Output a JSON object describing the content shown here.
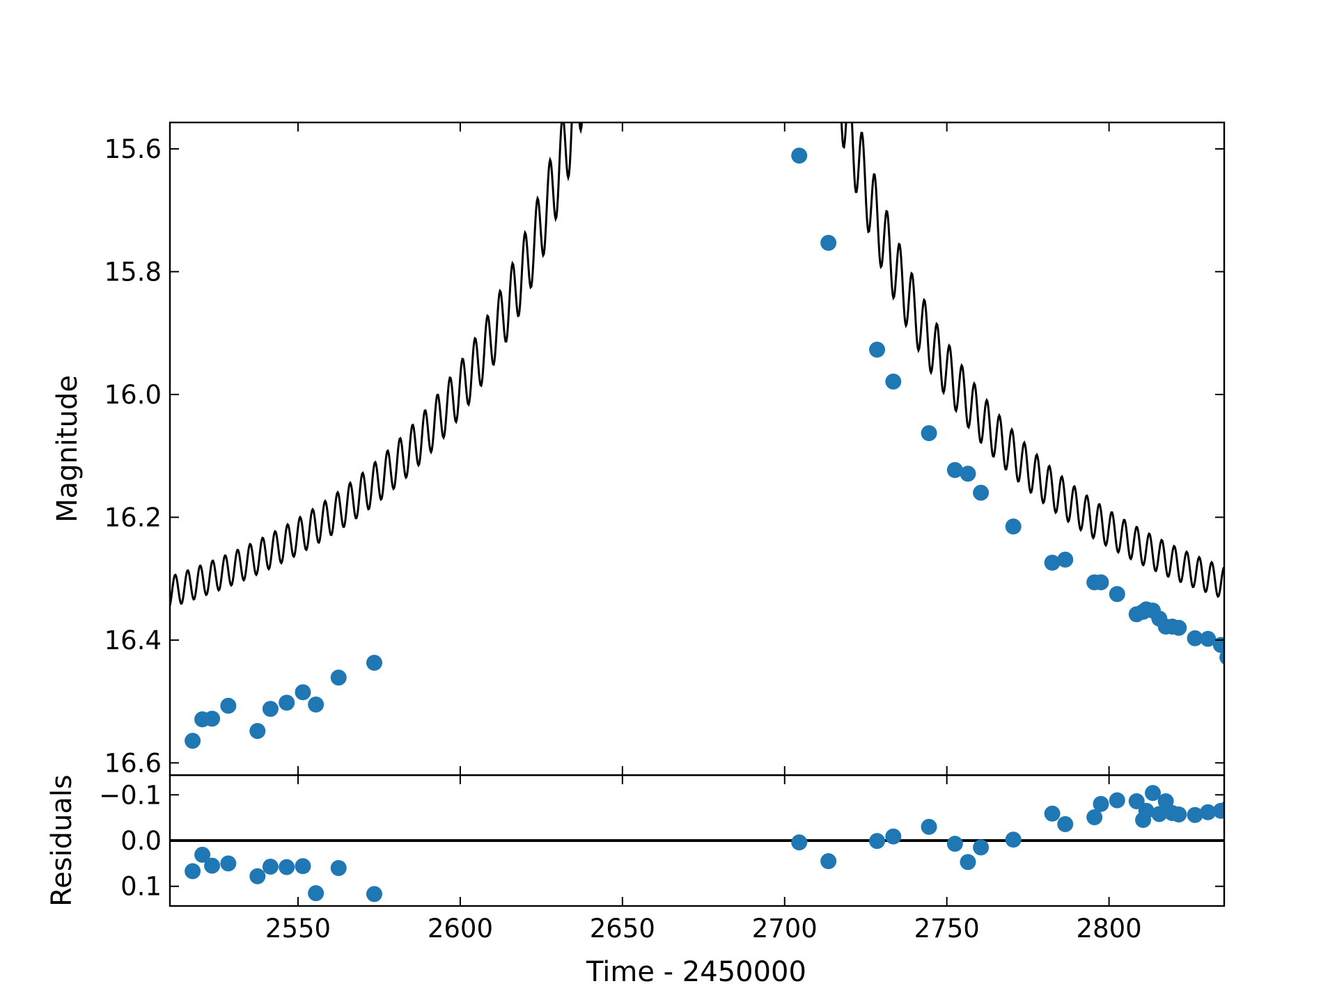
{
  "chart_data": [
    {
      "panel": "main",
      "type": "scatter",
      "xlabel": "",
      "ylabel": "Magnitude",
      "xlim": [
        2510.5,
        2835.5
      ],
      "ylim": [
        16.62,
        15.557
      ],
      "y_inverted": true,
      "yticks": [
        15.6,
        15.8,
        16.0,
        16.2,
        16.4,
        16.6
      ],
      "ytick_labels": [
        "15.6",
        "15.8",
        "16.0",
        "16.2",
        "16.4",
        "16.6"
      ],
      "xticks": [
        2550,
        2600,
        2650,
        2700,
        2750,
        2800
      ],
      "tick_direction": "in",
      "grid": false,
      "colors": {
        "points": "#1f77b4",
        "model": "#000000"
      },
      "series": [
        {
          "kind": "points",
          "x": [
            2517.5,
            2520.5,
            2523.5,
            2528.5,
            2537.5,
            2541.5,
            2546.5,
            2551.5,
            2555.5,
            2562.5,
            2573.5,
            2704.5,
            2713.5,
            2728.5,
            2733.5,
            2744.5,
            2752.5,
            2756.5,
            2760.5,
            2770.5,
            2782.5,
            2786.5,
            2795.5,
            2797.5,
            2802.5,
            2808.5,
            2810.5,
            2811.5,
            2813.5,
            2815.5,
            2817.5,
            2819.5,
            2821.5,
            2826.5,
            2830.5,
            2834.5,
            2836.5
          ],
          "y": [
            16.564,
            16.529,
            16.528,
            16.507,
            16.548,
            16.512,
            16.502,
            16.485,
            16.505,
            16.461,
            16.437,
            15.611,
            15.753,
            15.927,
            15.979,
            16.063,
            16.123,
            16.129,
            16.16,
            16.215,
            16.274,
            16.269,
            16.306,
            16.306,
            16.325,
            16.358,
            16.354,
            16.35,
            16.352,
            16.365,
            16.378,
            16.378,
            16.38,
            16.397,
            16.398,
            16.408,
            16.428
          ]
        },
        {
          "kind": "model",
          "description_free": true,
          "base_magnitude": 16.62,
          "peak_time": 2677,
          "timescale": 100,
          "amplitude": 2.5,
          "wiggle_period": 3.85
        }
      ]
    },
    {
      "panel": "residuals",
      "type": "scatter",
      "xlabel": "Time - 2450000",
      "ylabel": "Residuals",
      "xlim": [
        2510.5,
        2835.5
      ],
      "ylim": [
        0.143,
        -0.143
      ],
      "y_inverted": true,
      "yticks": [
        -0.1,
        0.0,
        0.1
      ],
      "ytick_labels": [
        "−0.1",
        "0.0",
        "0.1"
      ],
      "xticks": [
        2550,
        2600,
        2650,
        2700,
        2750,
        2800
      ],
      "xtick_labels": [
        "2550",
        "2600",
        "2650",
        "2700",
        "2750",
        "2800"
      ],
      "zero_line": 0.0,
      "tick_direction": "in",
      "grid": false,
      "colors": {
        "points": "#1f77b4",
        "zero_line": "#000000"
      },
      "series": [
        {
          "kind": "points",
          "x": [
            2517.5,
            2520.5,
            2523.5,
            2528.5,
            2537.5,
            2541.5,
            2546.5,
            2551.5,
            2555.5,
            2562.5,
            2573.5,
            2704.5,
            2713.5,
            2728.5,
            2733.5,
            2744.5,
            2752.5,
            2756.5,
            2760.5,
            2770.5,
            2782.5,
            2786.5,
            2795.5,
            2797.5,
            2802.5,
            2808.5,
            2810.5,
            2811.5,
            2813.5,
            2815.5,
            2817.5,
            2819.5,
            2821.5,
            2826.5,
            2830.5,
            2834.5,
            2836.5
          ],
          "y": [
            0.067,
            0.031,
            0.055,
            0.05,
            0.078,
            0.057,
            0.058,
            0.056,
            0.115,
            0.06,
            0.117,
            0.004,
            0.045,
            0.001,
            -0.009,
            -0.03,
            0.007,
            0.047,
            0.015,
            -0.002,
            -0.059,
            -0.036,
            -0.051,
            -0.08,
            -0.088,
            -0.086,
            -0.045,
            -0.065,
            -0.104,
            -0.058,
            -0.086,
            -0.06,
            -0.057,
            -0.056,
            -0.062,
            -0.065,
            -0.07
          ]
        }
      ]
    }
  ]
}
